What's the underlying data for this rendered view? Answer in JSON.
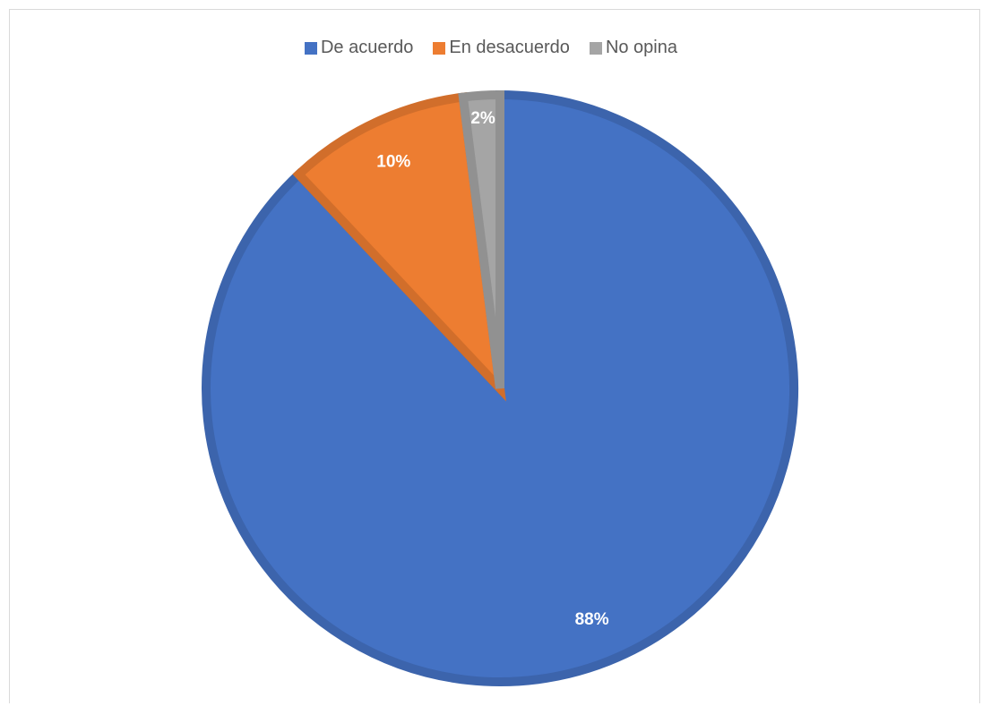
{
  "chart_data": {
    "type": "pie",
    "title": "",
    "categories": [
      "De acuerdo",
      "En desacuerdo",
      "No opina"
    ],
    "values": [
      88,
      10,
      2
    ],
    "labels": [
      "88%",
      "10%",
      "2%"
    ],
    "colors": [
      "#4472C4",
      "#ED7D31",
      "#A5A5A5"
    ],
    "legend_position": "top"
  }
}
